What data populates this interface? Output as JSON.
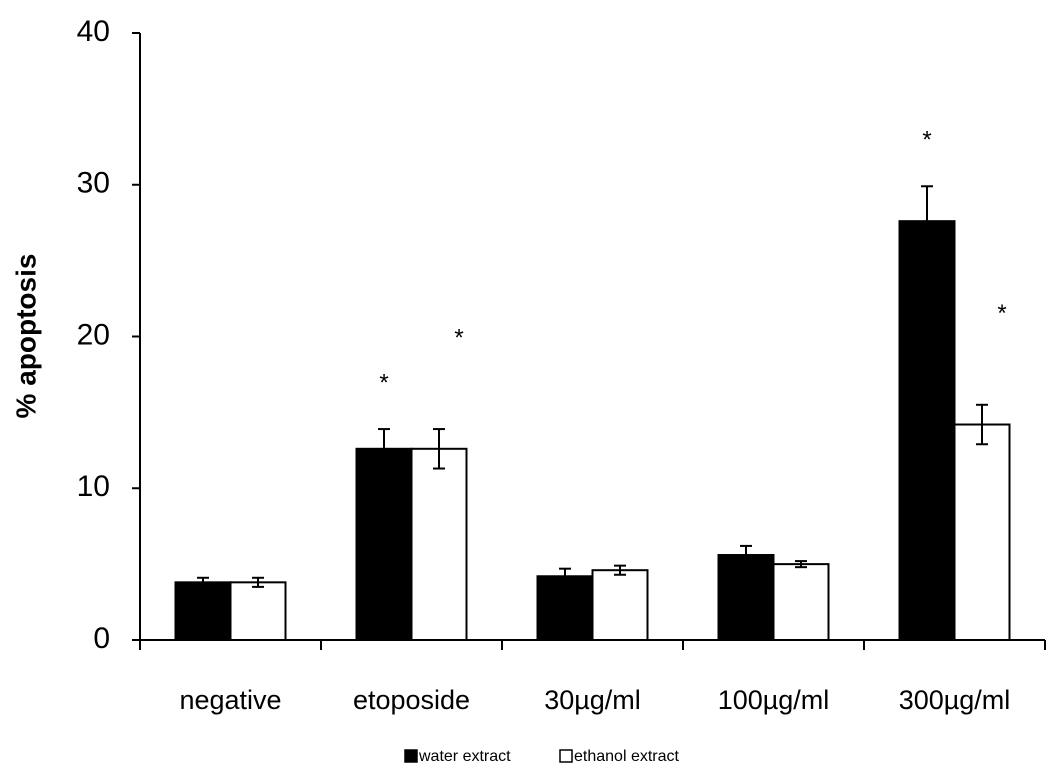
{
  "chart_data": {
    "type": "bar",
    "y_label": "% apoptosis",
    "categories": [
      "negative",
      "etoposide",
      "30µg/ml",
      "100µg/ml",
      "300µg/ml"
    ],
    "series": [
      {
        "name": "water extract",
        "color": "#000000",
        "values": [
          3.8,
          12.6,
          4.2,
          5.6,
          27.6
        ],
        "errors": [
          0.3,
          1.3,
          0.5,
          0.6,
          2.3
        ],
        "markers": [
          null,
          "*",
          null,
          null,
          "*"
        ]
      },
      {
        "name": "ethanol extract",
        "color": "#ffffff",
        "values": [
          3.8,
          12.6,
          4.6,
          5.0,
          14.2
        ],
        "errors": [
          0.3,
          1.3,
          0.3,
          0.2,
          1.3
        ],
        "markers": [
          null,
          "*",
          null,
          null,
          "*"
        ]
      }
    ],
    "ylim": [
      0,
      40
    ],
    "yticks": [
      0,
      10,
      20,
      30,
      40
    ],
    "grid": false
  }
}
